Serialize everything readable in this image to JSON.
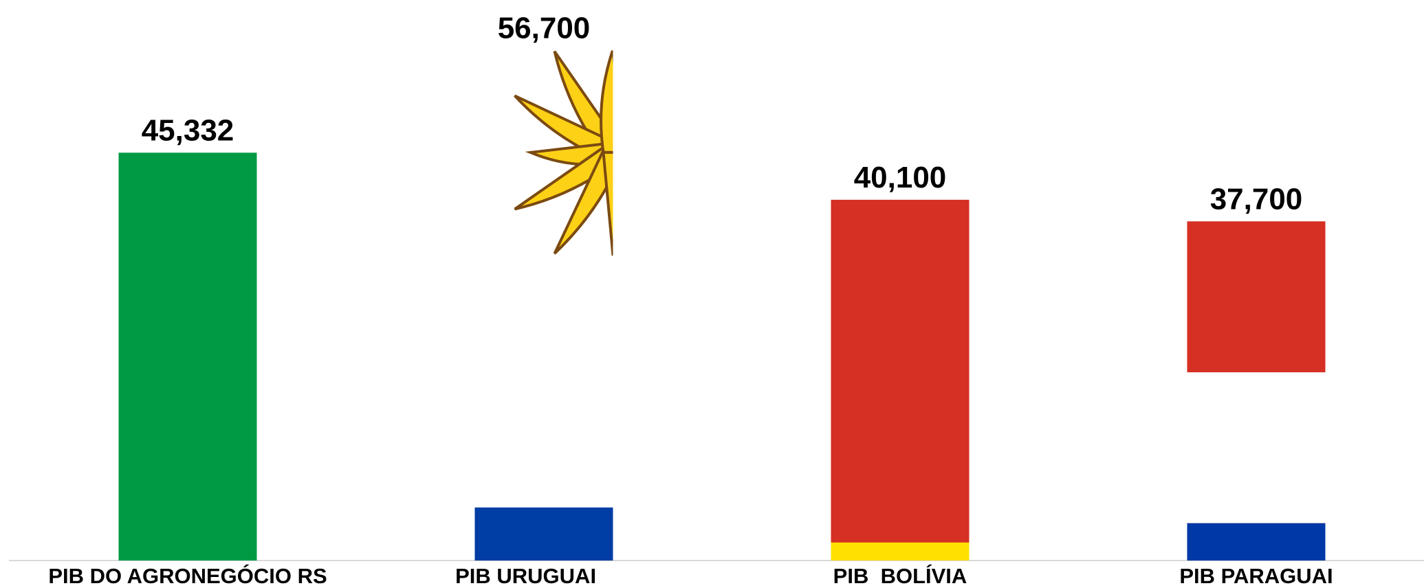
{
  "chart_data": {
    "type": "bar",
    "categories": [
      "PIB DO AGRONEGÓCIO RS",
      "PIB URUGUAI",
      "PIB  BOLÍVIA",
      "PIB PARAGUAI"
    ],
    "values": [
      45332,
      56700,
      40100,
      37700
    ],
    "value_labels": [
      "45,332",
      "56,700",
      "40,100",
      "37,700"
    ],
    "colors": [
      "#009a44",
      "#ffffff",
      "#d62f23",
      "#d62f23"
    ],
    "ylim": [
      0,
      62000
    ],
    "grid": false
  }
}
